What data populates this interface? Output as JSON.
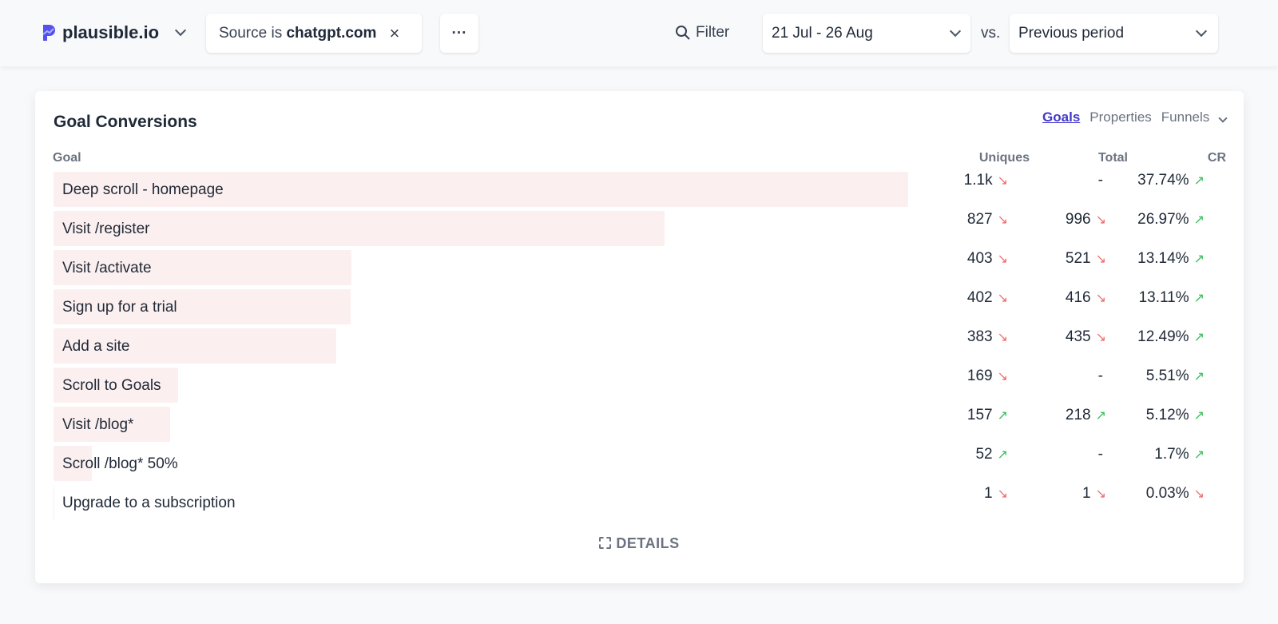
{
  "header": {
    "site": "plausible.io",
    "filter_prefix": "Source is ",
    "filter_value": "chatgpt.com",
    "more": "···",
    "filter_label": "Filter",
    "date_range": "21 Jul - 26 Aug",
    "vs": "vs.",
    "comparison": "Previous period"
  },
  "card": {
    "title": "Goal Conversions",
    "tabs": [
      "Goals",
      "Properties",
      "Funnels"
    ],
    "active_tab": "Goals",
    "columns": {
      "goal": "Goal",
      "uniques": "Uniques",
      "total": "Total",
      "cr": "CR"
    },
    "details": "DETAILS",
    "colors": {
      "bar": "#fcefef",
      "down": "#ef6b6b",
      "up": "#3bbf5c",
      "active_tab": "#4338ca"
    },
    "rows": [
      {
        "goal": "Deep scroll - homepage",
        "bar_percent": 100,
        "uniques": "1.1k",
        "uniques_trend": "down",
        "total": "-",
        "total_trend": "",
        "cr": "37.74%",
        "cr_trend": "up"
      },
      {
        "goal": "Visit /register",
        "bar_percent": 71.5,
        "uniques": "827",
        "uniques_trend": "down",
        "total": "996",
        "total_trend": "down",
        "cr": "26.97%",
        "cr_trend": "up"
      },
      {
        "goal": "Visit /activate",
        "bar_percent": 34.9,
        "uniques": "403",
        "uniques_trend": "down",
        "total": "521",
        "total_trend": "down",
        "cr": "13.14%",
        "cr_trend": "up"
      },
      {
        "goal": "Sign up for a trial",
        "bar_percent": 34.8,
        "uniques": "402",
        "uniques_trend": "down",
        "total": "416",
        "total_trend": "down",
        "cr": "13.11%",
        "cr_trend": "up"
      },
      {
        "goal": "Add a site",
        "bar_percent": 33.1,
        "uniques": "383",
        "uniques_trend": "down",
        "total": "435",
        "total_trend": "down",
        "cr": "12.49%",
        "cr_trend": "up"
      },
      {
        "goal": "Scroll to Goals",
        "bar_percent": 14.6,
        "uniques": "169",
        "uniques_trend": "down",
        "total": "-",
        "total_trend": "",
        "cr": "5.51%",
        "cr_trend": "up"
      },
      {
        "goal": "Visit /blog*",
        "bar_percent": 13.6,
        "uniques": "157",
        "uniques_trend": "up",
        "total": "218",
        "total_trend": "up",
        "cr": "5.12%",
        "cr_trend": "up"
      },
      {
        "goal": "Scroll /blog* 50%",
        "bar_percent": 4.5,
        "uniques": "52",
        "uniques_trend": "up",
        "total": "-",
        "total_trend": "",
        "cr": "1.7%",
        "cr_trend": "up"
      },
      {
        "goal": "Upgrade to a subscription",
        "bar_percent": 0.1,
        "uniques": "1",
        "uniques_trend": "down",
        "total": "1",
        "total_trend": "down",
        "cr": "0.03%",
        "cr_trend": "down"
      }
    ]
  }
}
